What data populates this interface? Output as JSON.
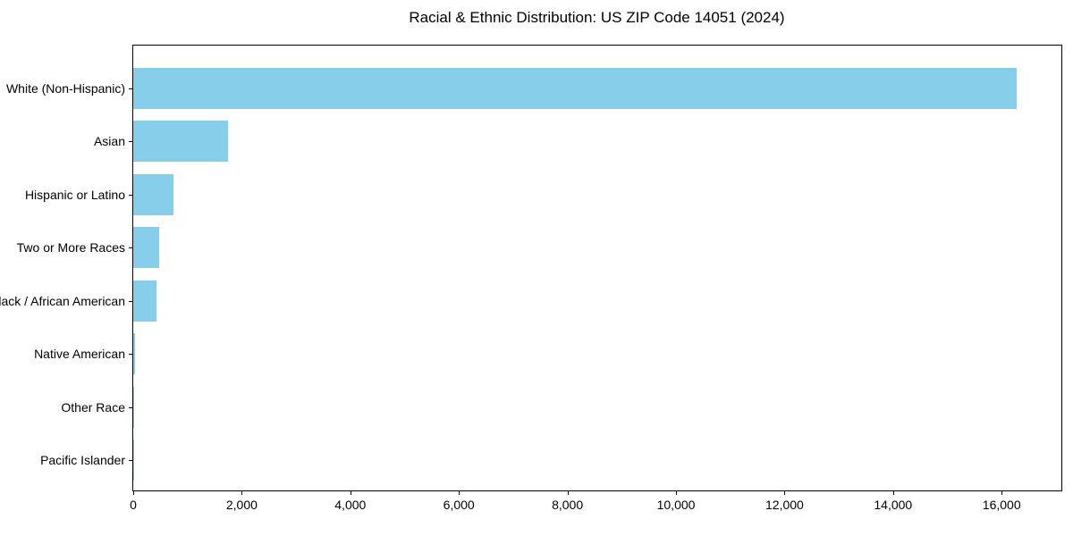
{
  "title": "Racial & Ethnic Distribution: US ZIP Code 14051 (2024)",
  "chart_data": {
    "type": "bar",
    "orientation": "horizontal",
    "title": "Racial & Ethnic Distribution: US ZIP Code 14051 (2024)",
    "xlabel": "",
    "ylabel": "",
    "categories": [
      "White (Non-Hispanic)",
      "Asian",
      "Hispanic or Latino",
      "Two or More Races",
      "Black / African American",
      "Native American",
      "Other Race",
      "Pacific Islander"
    ],
    "values": [
      16280,
      1750,
      745,
      480,
      430,
      25,
      18,
      5
    ],
    "xlim": [
      0,
      17100
    ],
    "x_ticks": [
      0,
      2000,
      4000,
      6000,
      8000,
      10000,
      12000,
      14000,
      16000
    ],
    "x_tick_labels": [
      "0",
      "2,000",
      "4,000",
      "6,000",
      "8,000",
      "10,000",
      "12,000",
      "14,000",
      "16,000"
    ],
    "grid": false,
    "legend": null,
    "colors": {
      "bar": "#87CEEB",
      "axis": "#000000",
      "text": "#000000",
      "background": "#ffffff"
    }
  }
}
